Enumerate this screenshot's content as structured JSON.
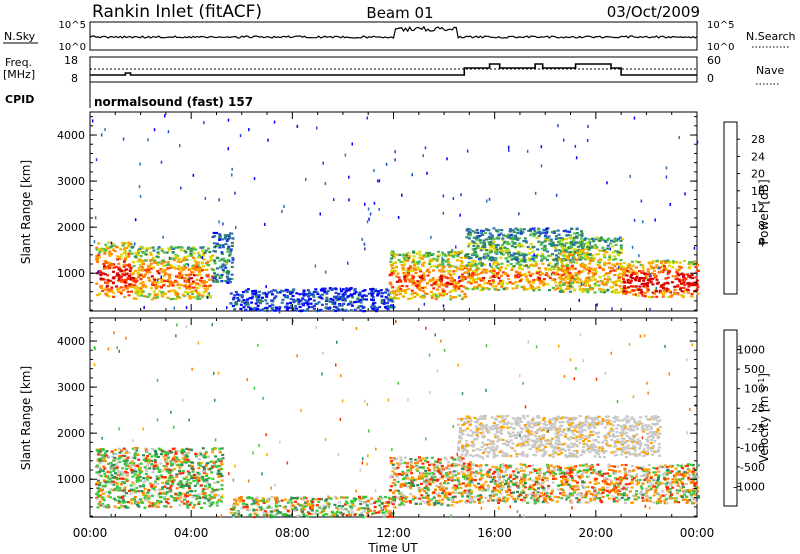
{
  "header": {
    "station": "Rankin Inlet (fitACF)",
    "beam": "Beam 01",
    "date": "03/Oct/2009"
  },
  "noise_panel": {
    "left_label": "N.Sky",
    "left_ticks": [
      "10^5",
      "10^0"
    ],
    "right_label": "N.Search",
    "right_ticks": [
      "10^5",
      "10^0"
    ]
  },
  "freq_panel": {
    "left_label_1": "Freq.",
    "left_label_2": "[MHz]",
    "left_ticks": [
      "18",
      "8"
    ],
    "right_label": "Nave",
    "right_ticks": [
      "60",
      "0"
    ]
  },
  "cpid_panel": {
    "label": "CPID",
    "text": "normalsound (fast) 157"
  },
  "chart_data": [
    {
      "type": "heatmap",
      "title": "",
      "xlabel": "Time UT",
      "ylabel": "Slant Range [km]",
      "x_ticks": [
        "00:00",
        "04:00",
        "08:00",
        "12:00",
        "16:00",
        "20:00",
        "00:00"
      ],
      "xlim_hours": [
        0,
        24
      ],
      "ylim": [
        180,
        4500
      ],
      "y_ticks": [
        1000,
        2000,
        3000,
        4000
      ],
      "colorbar": {
        "label": "Power [dB]",
        "ticks": [
          "28",
          "24",
          "20",
          "16",
          "12",
          "8",
          "4"
        ],
        "colors": [
          "#d40000",
          "#ff2a00",
          "#ff7f00",
          "#ffa500",
          "#d9d900",
          "#4dbf4d",
          "#2e8b57",
          "#2a6fb0",
          "#1f3fd0",
          "#0000ff"
        ]
      },
      "regions": [
        {
          "t": [
            0.2,
            1.6
          ],
          "r": [
            500,
            1700
          ],
          "level": 0.85
        },
        {
          "t": [
            1.6,
            4.8
          ],
          "r": [
            450,
            1600
          ],
          "level": 0.7
        },
        {
          "t": [
            4.8,
            5.6
          ],
          "r": [
            800,
            1900
          ],
          "level": 0.3
        },
        {
          "t": [
            5.5,
            12.0
          ],
          "r": [
            200,
            700
          ],
          "level": 0.15
        },
        {
          "t": [
            11.8,
            14.8
          ],
          "r": [
            450,
            1500
          ],
          "level": 0.72
        },
        {
          "t": [
            14.8,
            19.0
          ],
          "r": [
            650,
            1350
          ],
          "level": 0.68
        },
        {
          "t": [
            14.8,
            19.5
          ],
          "r": [
            1300,
            2000
          ],
          "level": 0.4
        },
        {
          "t": [
            18.5,
            21.0
          ],
          "r": [
            600,
            1800
          ],
          "level": 0.62
        },
        {
          "t": [
            21.0,
            24.0
          ],
          "r": [
            500,
            1300
          ],
          "level": 0.9
        }
      ]
    },
    {
      "type": "heatmap",
      "title": "",
      "xlabel": "Time UT",
      "ylabel": "Slant Range [km]",
      "x_ticks": [
        "00:00",
        "04:00",
        "08:00",
        "12:00",
        "16:00",
        "20:00",
        "00:00"
      ],
      "xlim_hours": [
        0,
        24
      ],
      "ylim": [
        180,
        4500
      ],
      "y_ticks": [
        1000,
        2000,
        3000,
        4000
      ],
      "colorbar": {
        "label": "Velocity [m s-1]",
        "ticks": [
          "1000",
          "500",
          "100",
          "25",
          "-25",
          "-100",
          "-500",
          "-1000"
        ],
        "colors": [
          "#1f3fd0",
          "#2e8b57",
          "#4dbf4d",
          "#33cc33",
          "#c8c8c8",
          "#ffa500",
          "#ff7f00",
          "#ff2a00",
          "#d40000"
        ]
      },
      "regions": [
        {
          "t": [
            0.2,
            5.2
          ],
          "r": [
            400,
            1700
          ],
          "level": 0.45
        },
        {
          "t": [
            5.5,
            12.0
          ],
          "r": [
            200,
            650
          ],
          "level": 0.5
        },
        {
          "t": [
            11.8,
            15.0
          ],
          "r": [
            450,
            1500
          ],
          "level": 0.7
        },
        {
          "t": [
            14.8,
            24.0
          ],
          "r": [
            500,
            1350
          ],
          "level": 0.75
        },
        {
          "t": [
            14.5,
            22.5
          ],
          "r": [
            1500,
            2400
          ],
          "level": 0.05
        }
      ]
    }
  ]
}
